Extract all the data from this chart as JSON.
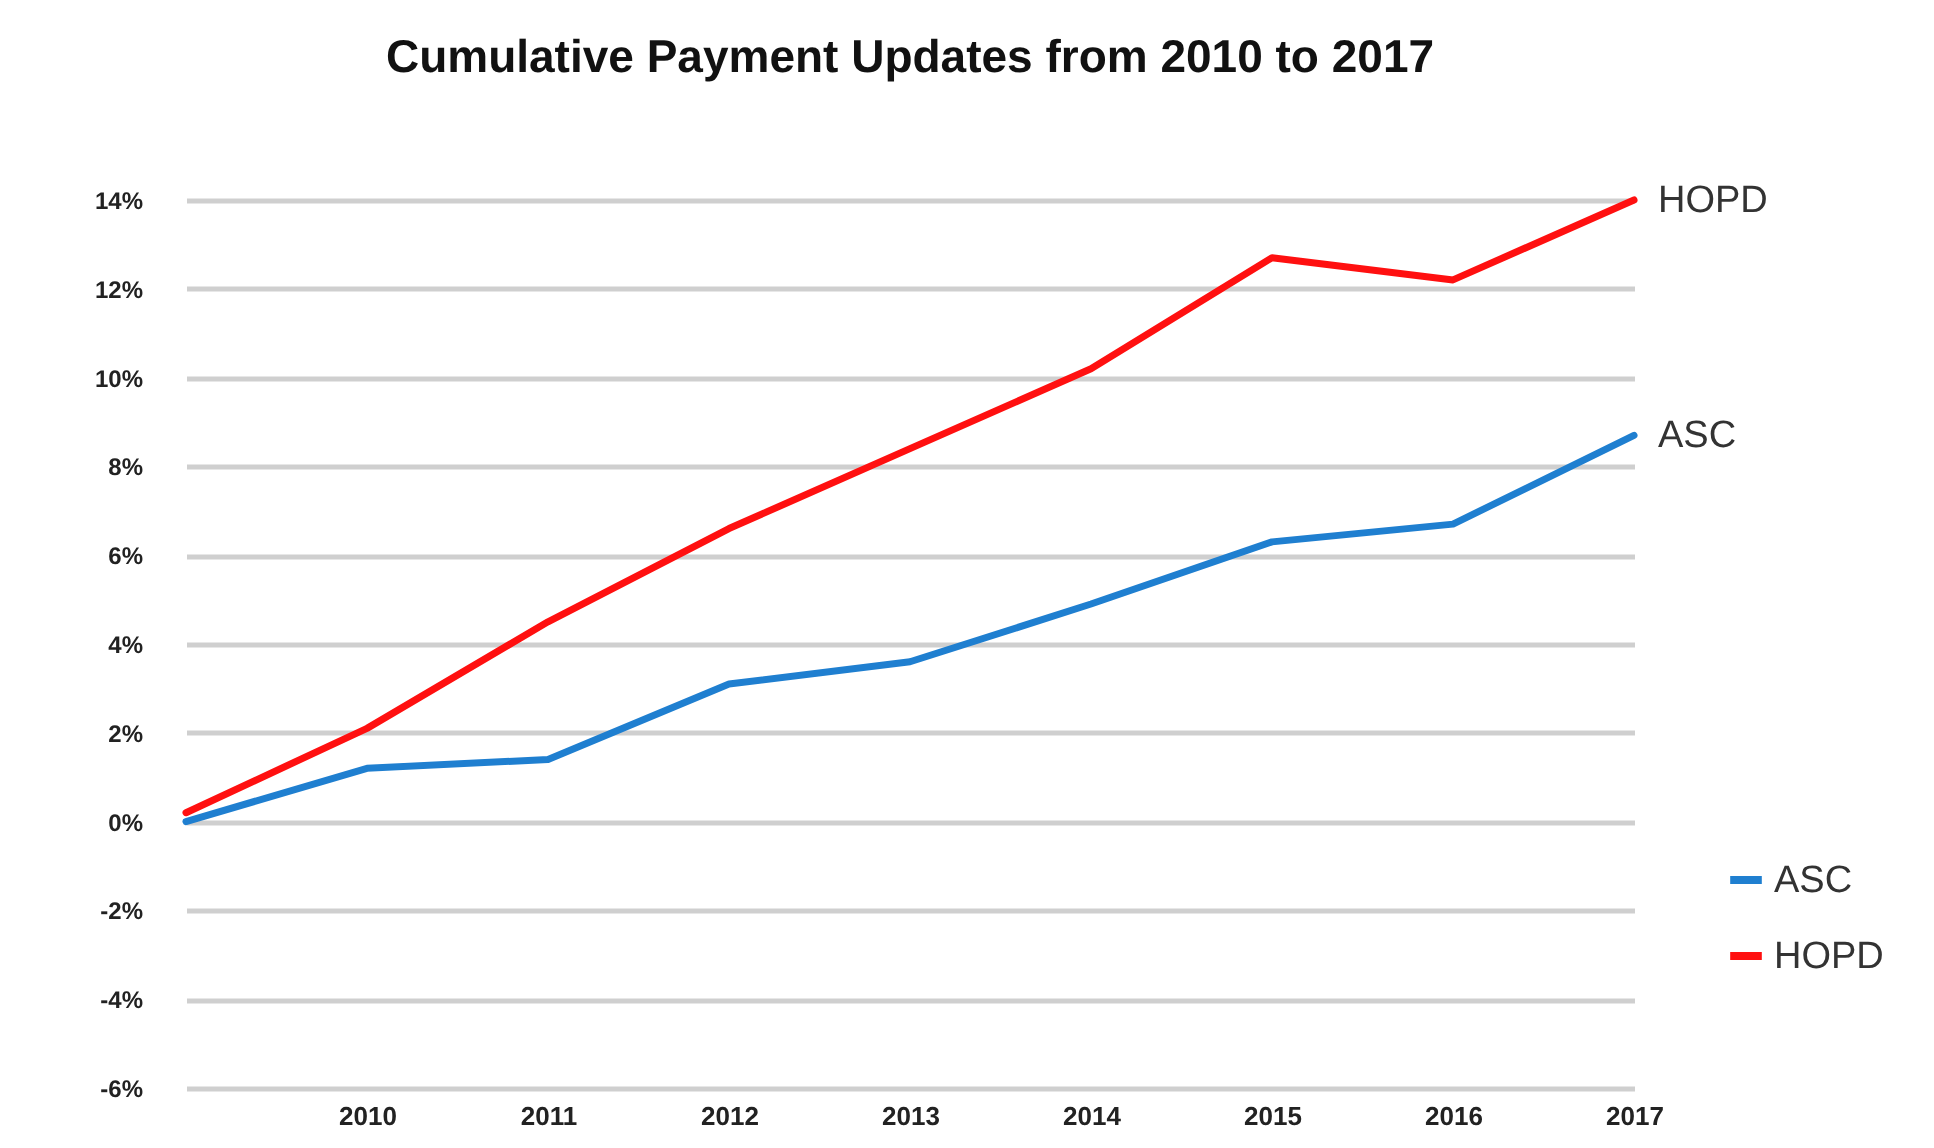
{
  "chart_data": {
    "type": "line",
    "title": "Cumulative Payment Updates from 2010 to 2017",
    "categories": [
      null,
      "2010",
      "2011",
      "2012",
      "2013",
      "2014",
      "2015",
      "2016",
      "2017"
    ],
    "series": [
      {
        "name": "ASC",
        "color": "#1f7fd0",
        "values": [
          0,
          1.2,
          1.4,
          3.1,
          3.6,
          4.9,
          6.3,
          6.7,
          8.7
        ]
      },
      {
        "name": "HOPD",
        "color": "#ff1010",
        "values": [
          0.2,
          2.1,
          4.5,
          6.6,
          8.4,
          10.2,
          12.7,
          12.2,
          14
        ]
      }
    ],
    "annotations": [
      {
        "text": "HOPD",
        "x": "2017",
        "y": 14
      },
      {
        "text": "ASC",
        "x": "2017",
        "y": 8.7
      }
    ],
    "ylim": [
      -6,
      14
    ],
    "yticks": [
      {
        "value": -6,
        "label": "-6%"
      },
      {
        "value": -4,
        "label": "-4%"
      },
      {
        "value": -2,
        "label": "-2%"
      },
      {
        "value": 0,
        "label": "0%"
      },
      {
        "value": 2,
        "label": "2%"
      },
      {
        "value": 4,
        "label": "4%"
      },
      {
        "value": 6,
        "label": "6%"
      },
      {
        "value": 8,
        "label": "8%"
      },
      {
        "value": 10,
        "label": "10%"
      },
      {
        "value": 12,
        "label": "12%"
      },
      {
        "value": 14,
        "label": "14%"
      }
    ],
    "grid": "y",
    "legend": "bottom right",
    "marker": "none",
    "line_style": "solid"
  }
}
